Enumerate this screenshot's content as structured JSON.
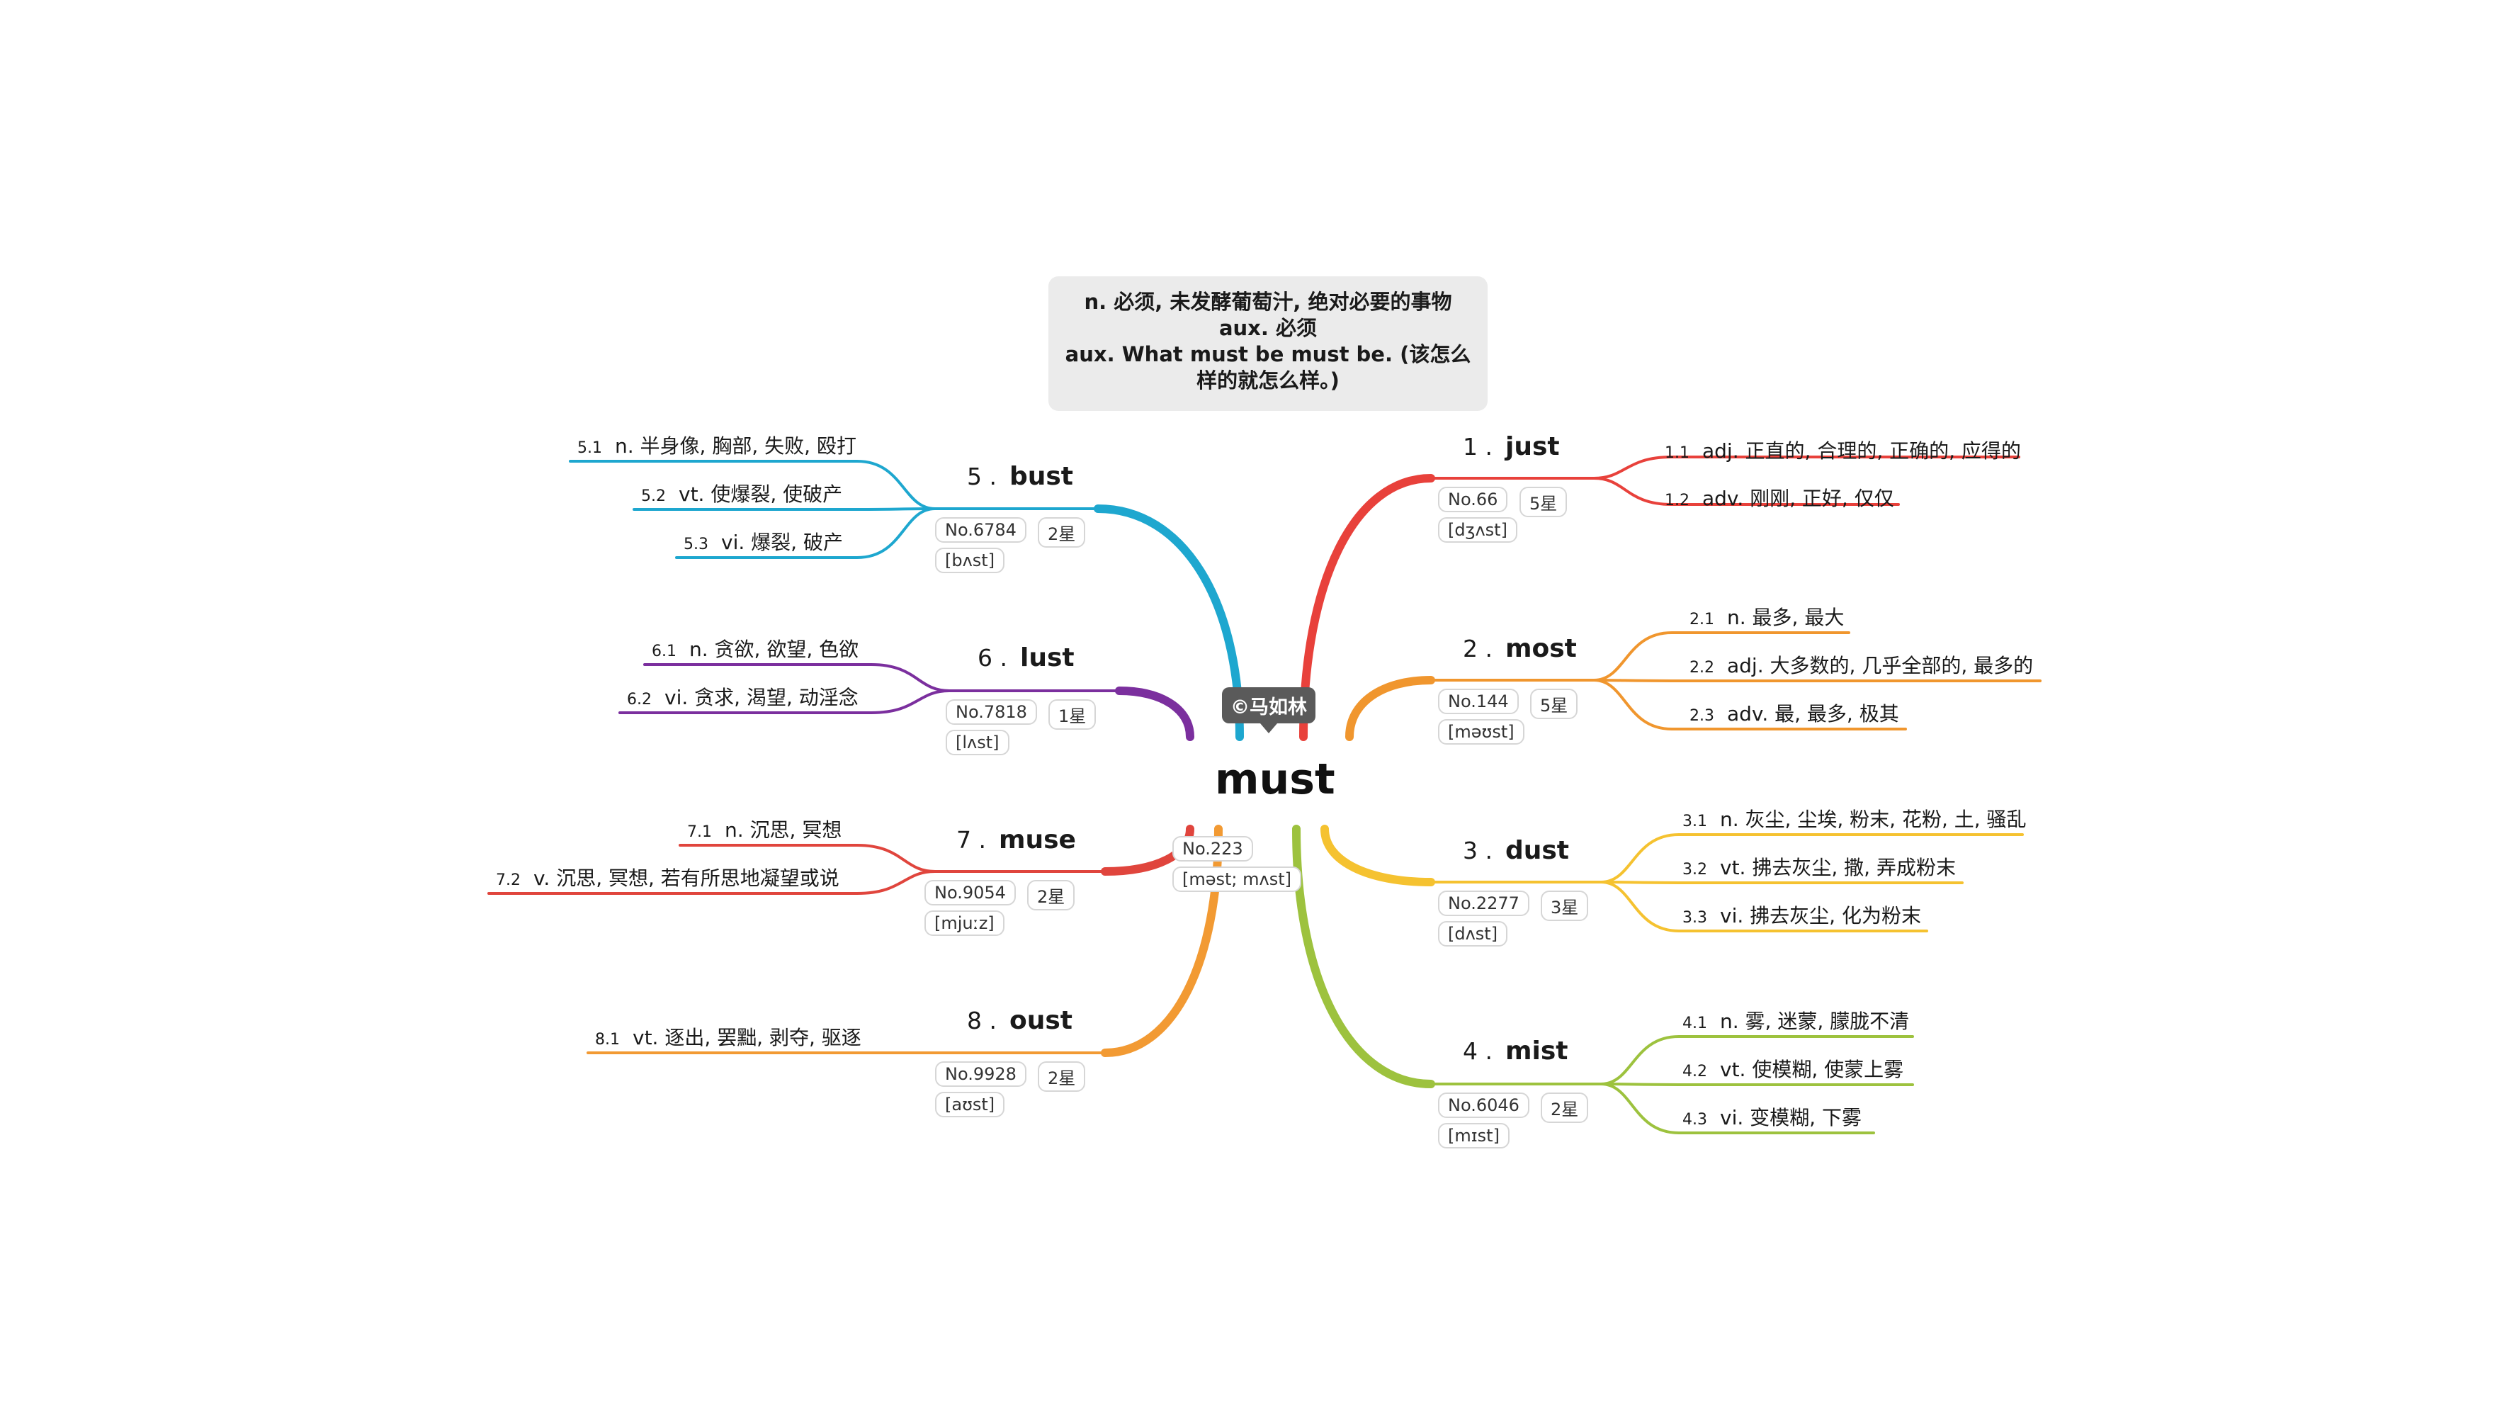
{
  "center": {
    "word": "must",
    "callout": "©马如林",
    "no": "No.223",
    "phonetic": "[məst; mʌst]",
    "note": {
      "line1": "n. 必须, 未发酵葡萄汁, 绝对必要的事物",
      "line2": "aux. 必须",
      "line3": "aux. What must be must be. (该怎么样的就怎么样。)"
    }
  },
  "colors": {
    "red": "#e8413b",
    "orange": "#f0962e",
    "yellow": "#f5c230",
    "green": "#9dc23e",
    "blue": "#1ea7cf",
    "purple": "#7b2f9e",
    "red2": "#e0453d",
    "orange2": "#f29a33"
  },
  "branches": [
    {
      "index": "1 .",
      "word": "just",
      "no": "No.66",
      "stars": "5星",
      "phonetic": "[dʒʌst]",
      "color": "red",
      "defs": [
        {
          "num": "1.1",
          "text": "adj. 正直的, 合理的, 正确的, 应得的"
        },
        {
          "num": "1.2",
          "text": "adv. 刚刚, 正好, 仅仅"
        }
      ]
    },
    {
      "index": "2 .",
      "word": "most",
      "no": "No.144",
      "stars": "5星",
      "phonetic": "[məʊst]",
      "color": "orange",
      "defs": [
        {
          "num": "2.1",
          "text": "n. 最多, 最大"
        },
        {
          "num": "2.2",
          "text": "adj. 大多数的, 几乎全部的, 最多的"
        },
        {
          "num": "2.3",
          "text": "adv. 最, 最多, 极其"
        }
      ]
    },
    {
      "index": "3 .",
      "word": "dust",
      "no": "No.2277",
      "stars": "3星",
      "phonetic": "[dʌst]",
      "color": "yellow",
      "defs": [
        {
          "num": "3.1",
          "text": "n. 灰尘, 尘埃, 粉末, 花粉, 土, 骚乱"
        },
        {
          "num": "3.2",
          "text": "vt. 拂去灰尘, 撒, 弄成粉末"
        },
        {
          "num": "3.3",
          "text": "vi. 拂去灰尘, 化为粉末"
        }
      ]
    },
    {
      "index": "4 .",
      "word": "mist",
      "no": "No.6046",
      "stars": "2星",
      "phonetic": "[mɪst]",
      "color": "green",
      "defs": [
        {
          "num": "4.1",
          "text": "n. 雾, 迷蒙, 朦胧不清"
        },
        {
          "num": "4.2",
          "text": "vt. 使模糊, 使蒙上雾"
        },
        {
          "num": "4.3",
          "text": "vi. 变模糊, 下雾"
        }
      ]
    },
    {
      "index": "5 .",
      "word": "bust",
      "no": "No.6784",
      "stars": "2星",
      "phonetic": "[bʌst]",
      "color": "blue",
      "defs": [
        {
          "num": "5.1",
          "text": "n. 半身像, 胸部, 失败, 殴打"
        },
        {
          "num": "5.2",
          "text": "vt. 使爆裂, 使破产"
        },
        {
          "num": "5.3",
          "text": "vi. 爆裂, 破产"
        }
      ]
    },
    {
      "index": "6 .",
      "word": "lust",
      "no": "No.7818",
      "stars": "1星",
      "phonetic": "[lʌst]",
      "color": "purple",
      "defs": [
        {
          "num": "6.1",
          "text": "n. 贪欲, 欲望, 色欲"
        },
        {
          "num": "6.2",
          "text": "vi. 贪求, 渴望, 动淫念"
        }
      ]
    },
    {
      "index": "7 .",
      "word": "muse",
      "no": "No.9054",
      "stars": "2星",
      "phonetic": "[mjuːz]",
      "color": "red2",
      "defs": [
        {
          "num": "7.1",
          "text": "n. 沉思, 冥想"
        },
        {
          "num": "7.2",
          "text": "v. 沉思, 冥想, 若有所思地凝望或说"
        }
      ]
    },
    {
      "index": "8 .",
      "word": "oust",
      "no": "No.9928",
      "stars": "2星",
      "phonetic": "[aʊst]",
      "color": "orange2",
      "defs": [
        {
          "num": "8.1",
          "text": "vt. 逐出, 罢黜, 剥夺, 驱逐"
        }
      ]
    }
  ]
}
